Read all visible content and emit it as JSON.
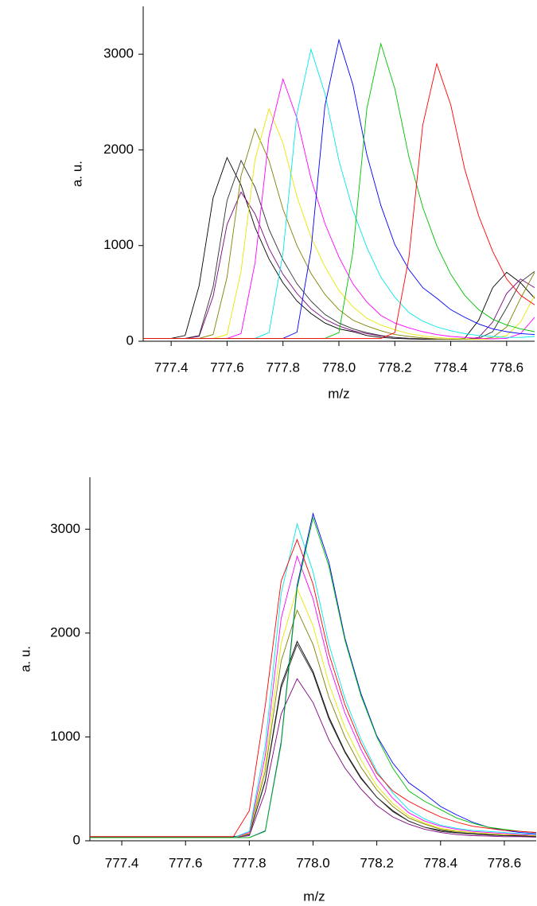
{
  "chart_data": [
    {
      "type": "line",
      "xlabel": "m/z",
      "ylabel": "a. u.",
      "x": [
        777.3,
        777.35,
        777.4,
        777.45,
        777.5,
        777.55,
        777.6,
        777.65,
        777.7,
        777.75,
        777.8,
        777.85,
        777.9,
        777.95,
        778.0,
        778.05,
        778.1,
        778.15,
        778.2,
        778.25,
        778.3,
        778.35,
        778.4,
        778.45,
        778.5,
        778.55,
        778.6,
        778.65,
        778.7
      ],
      "xlim": [
        777.3,
        778.7
      ],
      "xticks": [
        777.4,
        777.6,
        777.8,
        {
          "value": 778,
          "label": "778.0"
        },
        778.2,
        778.4,
        778.6
      ],
      "ylim": [
        0,
        3500
      ],
      "yticks": [
        0,
        1000,
        2000,
        3000
      ],
      "series": [
        {
          "color": "#000000",
          "values": [
            30,
            30,
            30,
            60,
            580,
            1500,
            1920,
            1630,
            1190,
            860,
            610,
            420,
            290,
            190,
            130,
            100,
            60,
            40,
            30,
            25,
            20,
            20,
            20,
            30,
            220,
            560,
            720,
            610,
            450
          ]
        },
        {
          "color": "#800080",
          "values": [
            30,
            30,
            30,
            30,
            50,
            470,
            1220,
            1560,
            1330,
            970,
            700,
            500,
            340,
            230,
            160,
            110,
            80,
            55,
            40,
            30,
            25,
            20,
            20,
            20,
            40,
            200,
            500,
            650,
            560
          ]
        },
        {
          "color": "#303030",
          "values": [
            30,
            30,
            30,
            30,
            60,
            570,
            1470,
            1890,
            1610,
            1170,
            850,
            600,
            420,
            280,
            190,
            130,
            90,
            60,
            40,
            30,
            25,
            20,
            20,
            20,
            30,
            100,
            350,
            620,
            730
          ]
        },
        {
          "color": "#808000",
          "values": [
            30,
            30,
            30,
            30,
            30,
            70,
            670,
            1730,
            2220,
            1890,
            1380,
            1000,
            710,
            490,
            330,
            220,
            160,
            110,
            70,
            50,
            35,
            25,
            20,
            20,
            20,
            40,
            150,
            450,
            720
          ]
        },
        {
          "color": "#e8e800",
          "values": [
            30,
            30,
            30,
            30,
            30,
            30,
            70,
            730,
            1900,
            2430,
            2070,
            1510,
            1090,
            780,
            530,
            360,
            240,
            170,
            120,
            80,
            55,
            40,
            30,
            25,
            20,
            25,
            60,
            200,
            480
          ]
        },
        {
          "color": "#ff00ff",
          "values": [
            30,
            30,
            30,
            30,
            30,
            30,
            30,
            80,
            820,
            2140,
            2740,
            2330,
            1700,
            1230,
            880,
            600,
            410,
            270,
            190,
            140,
            100,
            70,
            50,
            40,
            30,
            25,
            30,
            80,
            250
          ]
        },
        {
          "color": "#00e8e8",
          "values": [
            30,
            30,
            30,
            30,
            30,
            30,
            30,
            30,
            30,
            90,
            920,
            2380,
            3050,
            2590,
            1890,
            1370,
            980,
            670,
            460,
            300,
            210,
            150,
            110,
            80,
            60,
            50,
            40,
            40,
            50
          ]
        },
        {
          "color": "#0000ff",
          "values": [
            30,
            30,
            30,
            30,
            30,
            30,
            30,
            30,
            30,
            30,
            30,
            95,
            950,
            2460,
            3150,
            2680,
            1950,
            1420,
            1010,
            750,
            560,
            450,
            330,
            250,
            180,
            130,
            100,
            80,
            70
          ]
        },
        {
          "color": "#00c000",
          "values": [
            30,
            30,
            30,
            30,
            30,
            30,
            30,
            30,
            30,
            30,
            30,
            30,
            30,
            30,
            90,
            930,
            2430,
            3110,
            2640,
            1930,
            1400,
            1000,
            700,
            480,
            330,
            230,
            170,
            130,
            100
          ]
        },
        {
          "color": "#ff0000",
          "values": [
            30,
            30,
            30,
            30,
            30,
            30,
            30,
            30,
            30,
            30,
            30,
            30,
            30,
            30,
            30,
            30,
            30,
            30,
            90,
            870,
            2260,
            2900,
            2470,
            1800,
            1310,
            940,
            650,
            480,
            380
          ]
        }
      ]
    },
    {
      "type": "line",
      "xlabel": "m/z",
      "ylabel": "a. u.",
      "x": [
        777.3,
        777.35,
        777.4,
        777.45,
        777.5,
        777.55,
        777.6,
        777.65,
        777.7,
        777.75,
        777.8,
        777.85,
        777.9,
        777.95,
        778.0,
        778.05,
        778.1,
        778.15,
        778.2,
        778.25,
        778.3,
        778.35,
        778.4,
        778.45,
        778.5,
        778.55,
        778.6,
        778.65,
        778.7
      ],
      "xlim": [
        777.3,
        778.7
      ],
      "xticks": [
        777.4,
        777.6,
        777.8,
        {
          "value": 778,
          "label": "778.0"
        },
        778.2,
        778.4,
        778.6
      ],
      "ylim": [
        0,
        3500
      ],
      "yticks": [
        0,
        1000,
        2000,
        3000
      ],
      "series": [
        {
          "color": "#000000",
          "values": [
            40,
            40,
            40,
            40,
            40,
            40,
            40,
            40,
            40,
            40,
            60,
            580,
            1500,
            1920,
            1630,
            1190,
            860,
            610,
            420,
            290,
            190,
            130,
            100,
            80,
            70,
            60,
            50,
            50,
            40
          ]
        },
        {
          "color": "#800080",
          "values": [
            30,
            30,
            30,
            30,
            30,
            30,
            30,
            30,
            30,
            30,
            50,
            470,
            1220,
            1560,
            1330,
            970,
            700,
            500,
            340,
            230,
            160,
            110,
            80,
            60,
            50,
            45,
            40,
            40,
            35
          ]
        },
        {
          "color": "#303030",
          "values": [
            35,
            35,
            35,
            35,
            35,
            35,
            35,
            35,
            35,
            35,
            60,
            570,
            1470,
            1890,
            1610,
            1170,
            850,
            600,
            420,
            280,
            190,
            130,
            90,
            75,
            65,
            55,
            50,
            45,
            40
          ]
        },
        {
          "color": "#808000",
          "values": [
            30,
            30,
            30,
            30,
            30,
            30,
            30,
            30,
            30,
            30,
            70,
            670,
            1730,
            2220,
            1890,
            1380,
            1000,
            710,
            490,
            330,
            220,
            160,
            110,
            90,
            80,
            70,
            60,
            55,
            50
          ]
        },
        {
          "color": "#e8e800",
          "values": [
            30,
            30,
            30,
            30,
            30,
            30,
            30,
            30,
            30,
            30,
            70,
            730,
            1900,
            2430,
            2070,
            1510,
            1090,
            780,
            530,
            360,
            240,
            170,
            120,
            95,
            80,
            70,
            60,
            55,
            50
          ]
        },
        {
          "color": "#ff00ff",
          "values": [
            30,
            30,
            30,
            30,
            30,
            30,
            30,
            30,
            30,
            30,
            80,
            820,
            2140,
            2740,
            2330,
            1700,
            1230,
            880,
            600,
            410,
            270,
            190,
            140,
            110,
            90,
            80,
            70,
            60,
            55
          ]
        },
        {
          "color": "#00e8e8",
          "values": [
            30,
            30,
            30,
            30,
            30,
            30,
            30,
            30,
            30,
            30,
            90,
            920,
            2380,
            3050,
            2590,
            1890,
            1370,
            980,
            670,
            460,
            300,
            210,
            150,
            120,
            100,
            90,
            80,
            70,
            60
          ]
        },
        {
          "color": "#0000ff",
          "values": [
            30,
            30,
            30,
            30,
            30,
            30,
            30,
            30,
            30,
            30,
            30,
            95,
            950,
            2460,
            3150,
            2680,
            1950,
            1420,
            1010,
            750,
            560,
            450,
            330,
            250,
            180,
            130,
            100,
            80,
            70
          ]
        },
        {
          "color": "#00c000",
          "values": [
            30,
            30,
            30,
            30,
            30,
            30,
            30,
            30,
            30,
            30,
            30,
            90,
            930,
            2430,
            3110,
            2640,
            1930,
            1400,
            1000,
            700,
            480,
            380,
            300,
            220,
            170,
            130,
            110,
            90,
            80
          ]
        },
        {
          "color": "#ff0000",
          "values": [
            40,
            40,
            40,
            40,
            40,
            40,
            40,
            40,
            40,
            40,
            290,
            1300,
            2500,
            2900,
            2470,
            1800,
            1310,
            940,
            650,
            480,
            380,
            300,
            230,
            180,
            140,
            120,
            100,
            90,
            80
          ]
        }
      ]
    }
  ]
}
